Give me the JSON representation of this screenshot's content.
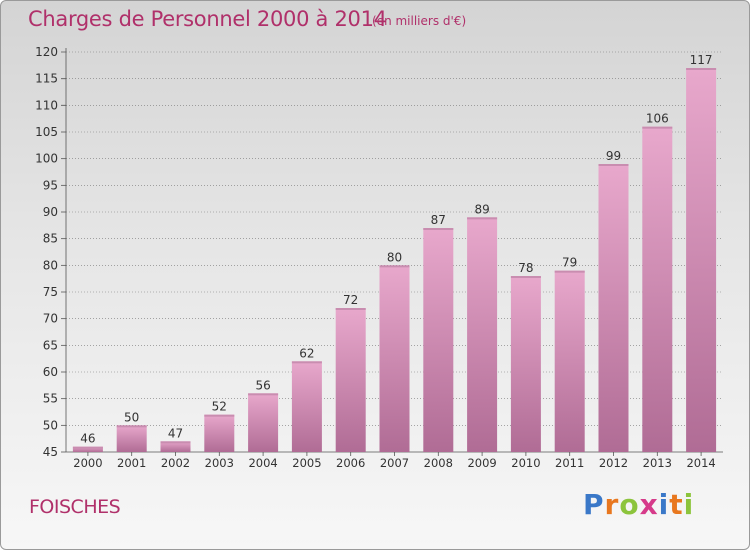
{
  "title": "Charges de Personnel 2000 à 2014",
  "subtitle": "(en milliers d'€)",
  "commune": "FOISCHES",
  "logo": {
    "text": "Proxiti",
    "letters": [
      {
        "ch": "P",
        "color": "#3a78c8"
      },
      {
        "ch": "r",
        "color": "#e8771e"
      },
      {
        "ch": "o",
        "color": "#8cc43c"
      },
      {
        "ch": "x",
        "color": "#d63a8a"
      },
      {
        "ch": "i",
        "color": "#3a78c8"
      },
      {
        "ch": "t",
        "color": "#e8771e"
      },
      {
        "ch": "i",
        "color": "#8cc43c"
      }
    ]
  },
  "colors": {
    "bar_light": "#e8a8cc",
    "bar_dark": "#b06c95",
    "grid": "#777777"
  },
  "chart_data": {
    "type": "bar",
    "title": "Charges de Personnel 2000 à 2014",
    "categories": [
      "2000",
      "2001",
      "2002",
      "2003",
      "2004",
      "2005",
      "2006",
      "2007",
      "2008",
      "2009",
      "2010",
      "2011",
      "2012",
      "2013",
      "2014"
    ],
    "values": [
      46,
      50,
      47,
      52,
      56,
      62,
      72,
      80,
      87,
      89,
      78,
      79,
      99,
      106,
      117
    ],
    "xlabel": "",
    "ylabel": "",
    "ylim": [
      45,
      120
    ],
    "yticks": [
      45,
      50,
      55,
      60,
      65,
      70,
      75,
      80,
      85,
      90,
      95,
      100,
      105,
      110,
      115,
      120
    ],
    "grid": true
  }
}
